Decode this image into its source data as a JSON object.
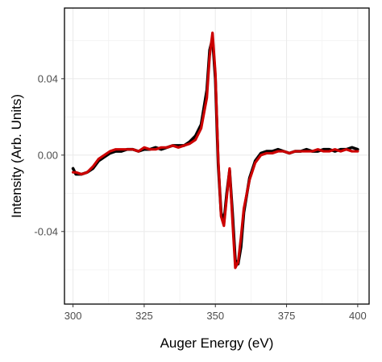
{
  "chart_data": {
    "type": "line",
    "title": "",
    "xlabel": "Auger Energy (eV)",
    "ylabel": "Intensity (Arb. Units)",
    "xlim": [
      297,
      404
    ],
    "ylim": [
      -0.078,
      0.077
    ],
    "xticks": [
      300,
      325,
      350,
      375,
      400
    ],
    "xtick_labels": [
      "300",
      "325",
      "350",
      "375",
      "400"
    ],
    "yticks": [
      -0.04,
      0.0,
      0.04
    ],
    "ytick_labels": [
      "-0.04",
      "0.00",
      "0.04"
    ],
    "grid": true,
    "legend": "none",
    "series": [
      {
        "color": "#000000",
        "x": [
          300,
          301,
          303,
          305,
          307,
          309,
          311,
          313,
          315,
          317,
          319,
          321,
          323,
          325,
          327,
          329,
          331,
          333,
          335,
          337,
          339,
          341,
          343,
          345,
          347,
          348,
          349,
          350,
          351,
          352,
          353,
          354,
          355,
          356,
          357,
          358,
          359,
          360,
          362,
          364,
          366,
          368,
          370,
          372,
          374,
          376,
          378,
          380,
          382,
          384,
          386,
          388,
          390,
          392,
          394,
          396,
          398,
          400
        ],
        "y": [
          -0.007,
          -0.01,
          -0.01,
          -0.009,
          -0.007,
          -0.003,
          -0.001,
          0.001,
          0.002,
          0.002,
          0.003,
          0.003,
          0.002,
          0.003,
          0.003,
          0.004,
          0.003,
          0.004,
          0.005,
          0.005,
          0.005,
          0.007,
          0.01,
          0.016,
          0.034,
          0.055,
          0.061,
          0.04,
          -0.005,
          -0.03,
          -0.035,
          -0.02,
          -0.008,
          -0.03,
          -0.055,
          -0.057,
          -0.048,
          -0.03,
          -0.012,
          -0.003,
          0.001,
          0.002,
          0.002,
          0.003,
          0.002,
          0.001,
          0.002,
          0.002,
          0.003,
          0.002,
          0.002,
          0.003,
          0.003,
          0.002,
          0.003,
          0.003,
          0.004,
          0.003
        ]
      },
      {
        "color": "#cc0000",
        "x": [
          300,
          301,
          303,
          305,
          307,
          309,
          311,
          313,
          315,
          317,
          319,
          321,
          323,
          325,
          327,
          329,
          331,
          333,
          335,
          337,
          339,
          341,
          343,
          345,
          347,
          348,
          349,
          350,
          351,
          352,
          353,
          354,
          355,
          356,
          357,
          358,
          359,
          360,
          362,
          364,
          366,
          368,
          370,
          372,
          374,
          376,
          378,
          380,
          382,
          384,
          386,
          388,
          390,
          392,
          394,
          396,
          398,
          400
        ],
        "y": [
          -0.009,
          -0.009,
          -0.01,
          -0.009,
          -0.006,
          -0.002,
          0.0,
          0.002,
          0.003,
          0.003,
          0.003,
          0.003,
          0.002,
          0.004,
          0.003,
          0.003,
          0.004,
          0.004,
          0.005,
          0.004,
          0.005,
          0.006,
          0.008,
          0.014,
          0.03,
          0.052,
          0.064,
          0.043,
          -0.002,
          -0.032,
          -0.037,
          -0.022,
          -0.007,
          -0.034,
          -0.059,
          -0.056,
          -0.043,
          -0.028,
          -0.013,
          -0.004,
          0.0,
          0.001,
          0.001,
          0.002,
          0.002,
          0.001,
          0.002,
          0.002,
          0.002,
          0.002,
          0.003,
          0.002,
          0.002,
          0.003,
          0.002,
          0.003,
          0.002,
          0.002
        ]
      }
    ]
  }
}
